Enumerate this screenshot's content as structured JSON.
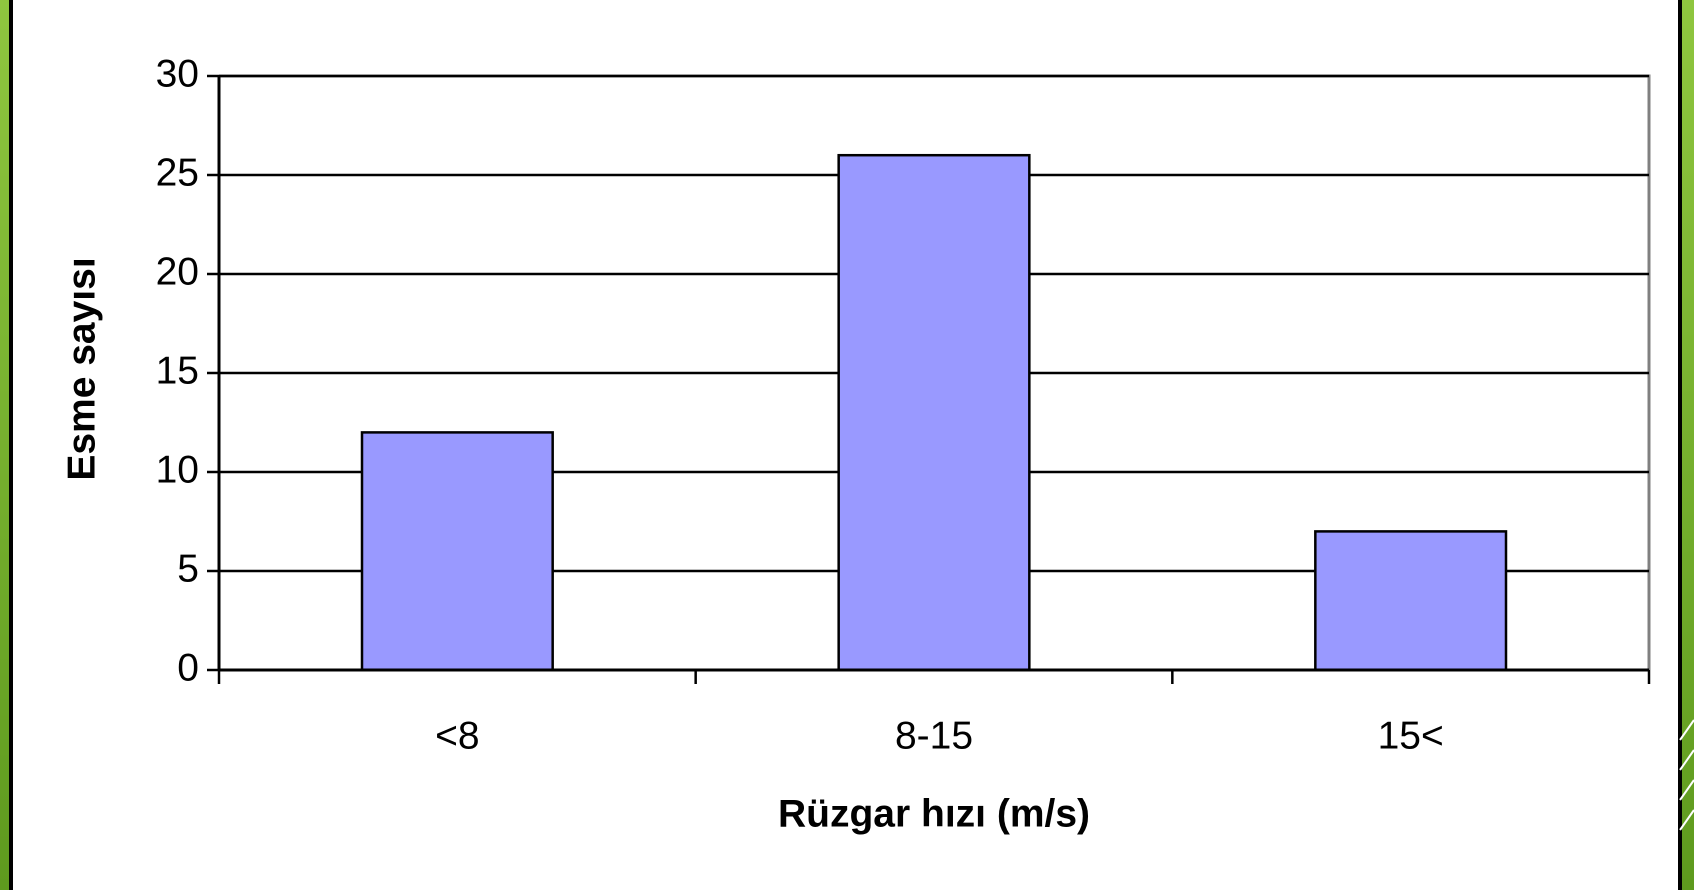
{
  "chart_data": {
    "type": "bar",
    "categories": [
      "<8",
      "8-15",
      "15<"
    ],
    "values": [
      12,
      26,
      7
    ],
    "color": "#9999ff",
    "xlabel": "Rüzgar hızı (m/s)",
    "ylabel": "Esme sayısı",
    "ylim": [
      0,
      30
    ],
    "yticks": [
      0,
      5,
      10,
      15,
      20,
      25,
      30
    ],
    "grid": true
  }
}
